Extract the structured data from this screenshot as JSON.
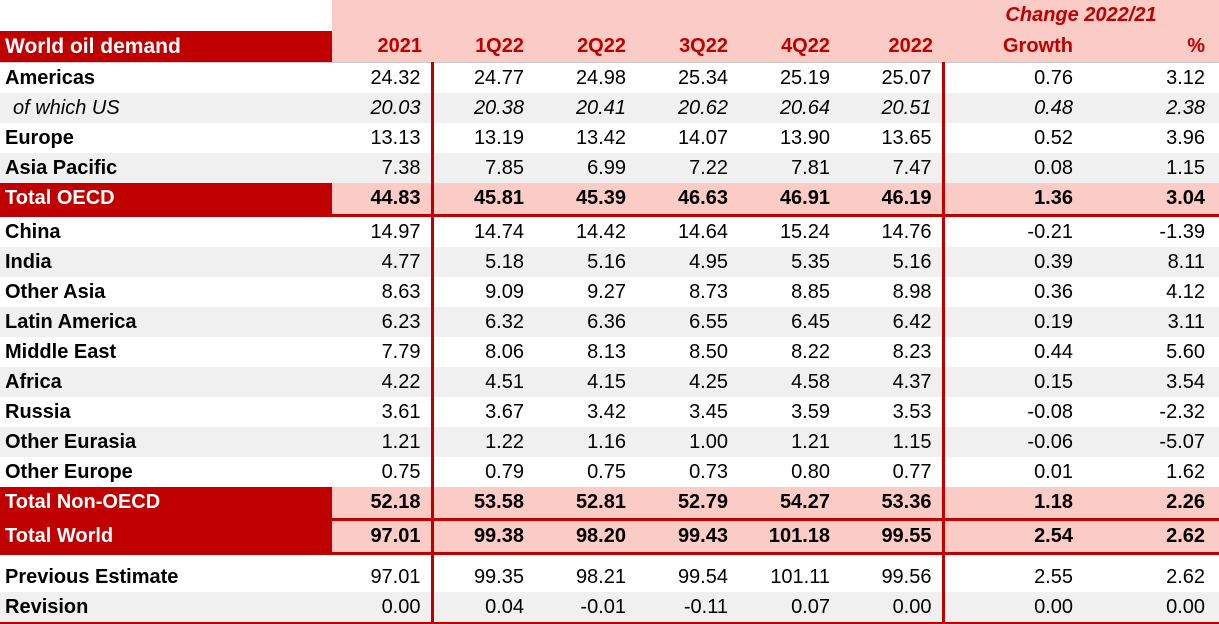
{
  "table": {
    "title": "World oil demand",
    "change_header": "Change 2022/21",
    "columns": [
      "2021",
      "1Q22",
      "2Q22",
      "3Q22",
      "4Q22",
      "2022",
      "Growth",
      "%"
    ],
    "rows": [
      {
        "label": "Americas",
        "alt": false,
        "values": [
          "24.32",
          "24.77",
          "24.98",
          "25.34",
          "25.19",
          "25.07",
          "0.76",
          "3.12"
        ]
      },
      {
        "label": "of which US",
        "alt": true,
        "italic": true,
        "values": [
          "20.03",
          "20.38",
          "20.41",
          "20.62",
          "20.64",
          "20.51",
          "0.48",
          "2.38"
        ]
      },
      {
        "label": "Europe",
        "alt": false,
        "values": [
          "13.13",
          "13.19",
          "13.42",
          "14.07",
          "13.90",
          "13.65",
          "0.52",
          "3.96"
        ]
      },
      {
        "label": "Asia Pacific",
        "alt": true,
        "values": [
          "7.38",
          "7.85",
          "6.99",
          "7.22",
          "7.81",
          "7.47",
          "0.08",
          "1.15"
        ]
      },
      {
        "label": "Total OECD",
        "total": true,
        "red_bottom": true,
        "values": [
          "44.83",
          "45.81",
          "45.39",
          "46.63",
          "46.91",
          "46.19",
          "1.36",
          "3.04"
        ]
      },
      {
        "label": "China",
        "alt": false,
        "values": [
          "14.97",
          "14.74",
          "14.42",
          "14.64",
          "15.24",
          "14.76",
          "-0.21",
          "-1.39"
        ]
      },
      {
        "label": "India",
        "alt": true,
        "values": [
          "4.77",
          "5.18",
          "5.16",
          "4.95",
          "5.35",
          "5.16",
          "0.39",
          "8.11"
        ]
      },
      {
        "label": "Other Asia",
        "alt": false,
        "values": [
          "8.63",
          "9.09",
          "9.27",
          "8.73",
          "8.85",
          "8.98",
          "0.36",
          "4.12"
        ]
      },
      {
        "label": "Latin America",
        "alt": true,
        "values": [
          "6.23",
          "6.32",
          "6.36",
          "6.55",
          "6.45",
          "6.42",
          "0.19",
          "3.11"
        ]
      },
      {
        "label": "Middle East",
        "alt": false,
        "values": [
          "7.79",
          "8.06",
          "8.13",
          "8.50",
          "8.22",
          "8.23",
          "0.44",
          "5.60"
        ]
      },
      {
        "label": "Africa",
        "alt": true,
        "values": [
          "4.22",
          "4.51",
          "4.15",
          "4.25",
          "4.58",
          "4.37",
          "0.15",
          "3.54"
        ]
      },
      {
        "label": "Russia",
        "alt": false,
        "values": [
          "3.61",
          "3.67",
          "3.42",
          "3.45",
          "3.59",
          "3.53",
          "-0.08",
          "-2.32"
        ]
      },
      {
        "label": "Other Eurasia",
        "alt": true,
        "values": [
          "1.21",
          "1.22",
          "1.16",
          "1.00",
          "1.21",
          "1.15",
          "-0.06",
          "-5.07"
        ]
      },
      {
        "label": "Other Europe",
        "alt": false,
        "values": [
          "0.75",
          "0.79",
          "0.75",
          "0.73",
          "0.80",
          "0.77",
          "0.01",
          "1.62"
        ]
      },
      {
        "label": "Total Non-OECD",
        "total": true,
        "red_bottom": true,
        "values": [
          "52.18",
          "53.58",
          "52.81",
          "52.79",
          "54.27",
          "53.36",
          "1.18",
          "2.26"
        ]
      },
      {
        "label": "Total World",
        "total": true,
        "red_bottom": true,
        "values": [
          "97.01",
          "99.38",
          "98.20",
          "99.43",
          "101.18",
          "99.55",
          "2.54",
          "2.62"
        ]
      },
      {
        "label": "Previous Estimate",
        "alt": false,
        "gap_before": true,
        "values": [
          "97.01",
          "99.35",
          "98.21",
          "99.54",
          "101.11",
          "99.56",
          "2.55",
          "2.62"
        ]
      },
      {
        "label": "Revision",
        "alt": true,
        "red_bottom": true,
        "values": [
          "0.00",
          "0.04",
          "-0.01",
          "-0.11",
          "0.07",
          "0.00",
          "0.00",
          "0.00"
        ]
      }
    ],
    "colors": {
      "header_dark_red": "#C00000",
      "header_pink": "#FBCBC5",
      "row_alt_gray": "#F0F0F0",
      "border_red": "#C00000",
      "header_text_red": "#C00000"
    }
  }
}
